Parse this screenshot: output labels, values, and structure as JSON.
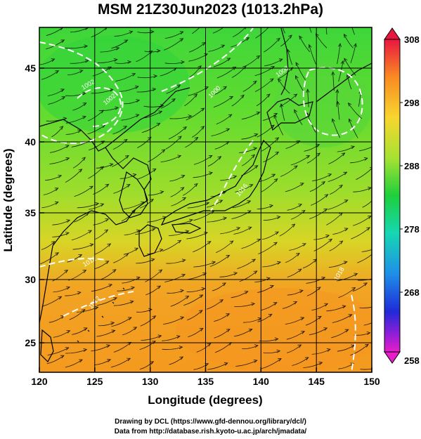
{
  "title": "MSM 21Z30Jun2023 (1013.2hPa)",
  "axes": {
    "xlabel": "Longitude (degrees)",
    "ylabel": "Latitude  (degrees)",
    "xticks": [
      "120",
      "125",
      "130",
      "135",
      "140",
      "145",
      "150"
    ],
    "yticks": [
      "25",
      "30",
      "35",
      "40",
      "45"
    ]
  },
  "colorbar": {
    "ticks": [
      "308",
      "298",
      "288",
      "278",
      "268",
      "258"
    ],
    "colors": [
      "#e8163f",
      "#f98a23",
      "#f8d62e",
      "#a6e233",
      "#1ecf3b",
      "#16d7b3",
      "#1f8fe8",
      "#1f2bd8",
      "#8a1fd8",
      "#e81ec8"
    ]
  },
  "contour_labels": [
    "1002",
    "1002",
    "1000",
    "1000",
    "1012",
    "1012",
    "1016",
    "1018"
  ],
  "credits": {
    "line1": "Drawing by DCL (https://www.gfd-dennou.org/library/dcl/)",
    "line2": "Data from http://database.rish.kyoto-u.ac.jp/arch/jmadata/"
  }
}
